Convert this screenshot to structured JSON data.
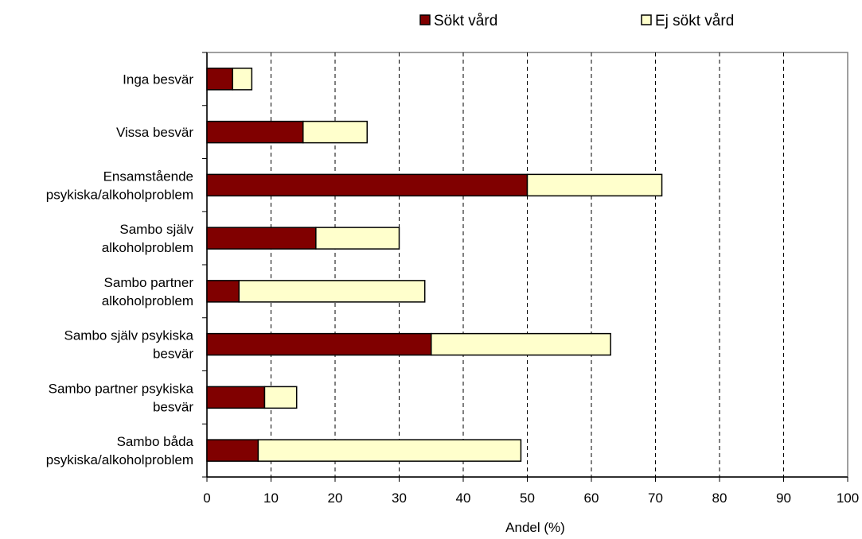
{
  "chart_data": {
    "type": "bar",
    "orientation": "horizontal",
    "stacked": true,
    "categories": [
      [
        "Inga besvär"
      ],
      [
        "Vissa besvär"
      ],
      [
        "Ensamstående",
        "psykiska/alkoholproblem"
      ],
      [
        "Sambo själv",
        "alkoholproblem"
      ],
      [
        "Sambo partner",
        "alkoholproblem"
      ],
      [
        "Sambo själv psykiska",
        "besvär"
      ],
      [
        "Sambo partner psykiska",
        "besvär"
      ],
      [
        "Sambo båda",
        "psykiska/alkoholproblem"
      ]
    ],
    "series": [
      {
        "name": "Sökt vård",
        "color": "#800000",
        "values": [
          4,
          15,
          50,
          17,
          5,
          35,
          9,
          8
        ]
      },
      {
        "name": "Ej sökt vård",
        "color": "#ffffcc",
        "values": [
          3,
          10,
          21,
          13,
          29,
          28,
          5,
          41
        ]
      }
    ],
    "xlabel": "Andel (%)",
    "xlim": [
      0,
      100
    ],
    "xticks": [
      0,
      10,
      20,
      30,
      40,
      50,
      60,
      70,
      80,
      90,
      100
    ],
    "grid": "vertical dashed",
    "legend": "top"
  }
}
